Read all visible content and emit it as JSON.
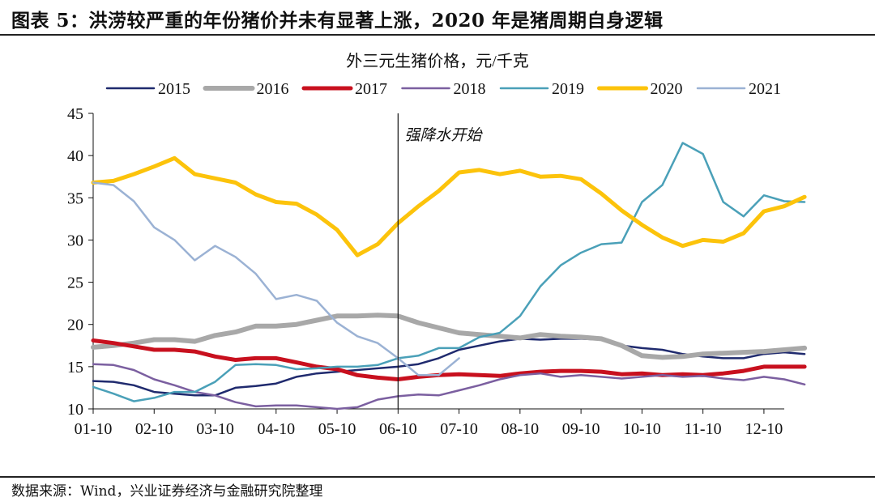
{
  "figure": {
    "title": "图表 5：洪涝较严重的年份猪价并未有显著上涨，2020 年是猪周期自身逻辑",
    "source": "数据来源：Wind，兴业证券经济与金融研究院整理"
  },
  "chart_data": {
    "type": "line",
    "title": "外三元生猪价格，元/千克",
    "xlabel": "",
    "ylabel": "",
    "ylim": [
      10,
      45
    ],
    "yticks": [
      10,
      15,
      20,
      25,
      30,
      35,
      40,
      45
    ],
    "xlim": [
      0,
      34
    ],
    "xticks": [
      {
        "x": 0,
        "label": "01-10"
      },
      {
        "x": 3,
        "label": "02-10"
      },
      {
        "x": 6,
        "label": "03-10"
      },
      {
        "x": 9,
        "label": "04-10"
      },
      {
        "x": 12,
        "label": "05-10"
      },
      {
        "x": 15,
        "label": "06-10"
      },
      {
        "x": 18,
        "label": "07-10"
      },
      {
        "x": 21,
        "label": "08-10"
      },
      {
        "x": 24,
        "label": "09-10"
      },
      {
        "x": 27,
        "label": "10-10"
      },
      {
        "x": 30,
        "label": "11-10"
      },
      {
        "x": 33,
        "label": "12-10"
      }
    ],
    "legend_position": "top",
    "annotation": {
      "text": "强降水开始",
      "x": 15
    },
    "series": [
      {
        "name": "2015",
        "color": "#1f2a6e",
        "width": 2.5,
        "values": [
          13.3,
          13.2,
          12.8,
          12.0,
          11.8,
          11.6,
          11.6,
          12.5,
          12.7,
          13.0,
          13.8,
          14.2,
          14.4,
          14.6,
          14.8,
          15.0,
          15.3,
          16.0,
          17.0,
          17.5,
          18.0,
          18.3,
          18.2,
          18.3,
          18.3,
          18.2,
          17.5,
          17.2,
          17.0,
          16.5,
          16.2,
          16.0,
          16.0,
          16.5,
          16.7,
          16.5
        ]
      },
      {
        "name": "2016",
        "color": "#a8a8a8",
        "width": 6,
        "values": [
          17.3,
          17.5,
          17.8,
          18.2,
          18.2,
          18.0,
          18.7,
          19.1,
          19.8,
          19.8,
          20.0,
          20.5,
          21.0,
          21.0,
          21.1,
          21.0,
          20.2,
          19.6,
          19.0,
          18.8,
          18.6,
          18.4,
          18.8,
          18.6,
          18.5,
          18.3,
          17.5,
          16.3,
          16.1,
          16.2,
          16.5,
          16.6,
          16.7,
          16.8,
          17.0,
          17.2
        ]
      },
      {
        "name": "2017",
        "color": "#c8101e",
        "width": 5,
        "values": [
          18.1,
          17.8,
          17.4,
          17.0,
          17.0,
          16.8,
          16.2,
          15.8,
          16.0,
          16.0,
          15.5,
          15.0,
          14.7,
          14.0,
          13.7,
          13.5,
          13.8,
          14.0,
          14.1,
          14.0,
          13.9,
          14.2,
          14.4,
          14.5,
          14.5,
          14.4,
          14.1,
          14.2,
          14.0,
          14.1,
          14.0,
          14.2,
          14.5,
          15.0,
          15.0,
          15.0
        ]
      },
      {
        "name": "2018",
        "color": "#7b5fa0",
        "width": 2.5,
        "values": [
          15.3,
          15.2,
          14.6,
          13.5,
          12.8,
          12.0,
          11.6,
          10.8,
          10.3,
          10.4,
          10.4,
          10.2,
          10.0,
          10.2,
          11.1,
          11.5,
          11.7,
          11.6,
          12.2,
          12.8,
          13.5,
          14.0,
          14.2,
          13.8,
          14.0,
          13.8,
          13.6,
          13.8,
          14.0,
          13.8,
          13.9,
          13.6,
          13.4,
          13.8,
          13.5,
          12.9
        ]
      },
      {
        "name": "2019",
        "color": "#4aa0b8",
        "width": 2.5,
        "values": [
          12.6,
          11.8,
          10.9,
          11.3,
          12.0,
          12.0,
          13.2,
          15.2,
          15.3,
          15.2,
          14.7,
          14.8,
          15.0,
          15.0,
          15.2,
          16.0,
          16.3,
          17.2,
          17.2,
          18.5,
          19.0,
          21.0,
          24.5,
          27.0,
          28.5,
          29.5,
          29.7,
          34.5,
          36.5,
          41.5,
          40.2,
          34.5,
          32.8,
          35.3,
          34.6,
          34.5
        ]
      },
      {
        "name": "2020",
        "color": "#fcc30b",
        "width": 5,
        "values": [
          36.8,
          37.0,
          37.8,
          38.7,
          39.7,
          37.8,
          37.3,
          36.8,
          35.4,
          34.5,
          34.3,
          33.0,
          31.2,
          28.2,
          29.5,
          32.0,
          34.0,
          35.8,
          38.0,
          38.3,
          37.8,
          38.2,
          37.5,
          37.6,
          37.2,
          35.5,
          33.5,
          31.8,
          30.3,
          29.3,
          30.0,
          29.8,
          30.8,
          33.4,
          34.0,
          35.1
        ]
      },
      {
        "name": "2021",
        "color": "#9bb2d4",
        "width": 2.5,
        "values": [
          36.8,
          36.5,
          34.6,
          31.5,
          30.0,
          27.6,
          29.3,
          28.0,
          26.0,
          23.0,
          23.5,
          22.8,
          20.2,
          18.6,
          17.8,
          16.0,
          14.0,
          14.0,
          16.0,
          null,
          null,
          null,
          null,
          null,
          null,
          null,
          null,
          null,
          null,
          null,
          null,
          null,
          null,
          null,
          null,
          null
        ]
      }
    ]
  }
}
